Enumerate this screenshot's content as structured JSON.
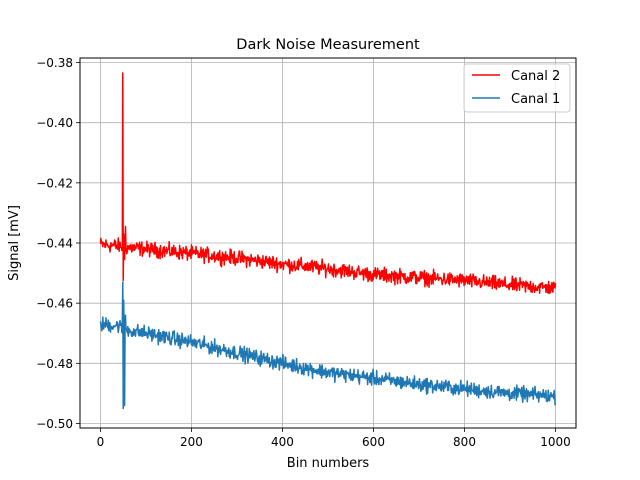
{
  "chart_data": {
    "type": "line",
    "title": "Dark Noise Measurement",
    "xlabel": "Bin numbers",
    "ylabel": "Signal [mV]",
    "xlim": [
      -45,
      1045
    ],
    "ylim": [
      -0.5015,
      -0.3785
    ],
    "x_ticks": [
      0,
      200,
      400,
      600,
      800,
      1000
    ],
    "y_ticks": [
      -0.5,
      -0.48,
      -0.46,
      -0.44,
      -0.42,
      -0.4,
      -0.38
    ],
    "x_tick_labels": [
      "0",
      "200",
      "400",
      "600",
      "800",
      "1000"
    ],
    "y_tick_labels": [
      "−0.50",
      "−0.48",
      "−0.46",
      "−0.44",
      "−0.42",
      "−0.40",
      "−0.38"
    ],
    "grid": true,
    "legend_position": "top-right",
    "x_range": [
      0,
      1000
    ],
    "series": [
      {
        "name": "Canal 2",
        "color": "#ff0000",
        "trend_x": [
          0,
          40,
          60,
          100,
          200,
          300,
          400,
          500,
          600,
          700,
          800,
          900,
          1000
        ],
        "trend_y": [
          -0.4405,
          -0.441,
          -0.4415,
          -0.442,
          -0.4435,
          -0.445,
          -0.447,
          -0.4485,
          -0.4505,
          -0.4515,
          -0.4525,
          -0.454,
          -0.455
        ],
        "noise_amplitude": 0.0012,
        "spikes": [
          {
            "x": 49,
            "y": -0.3835
          },
          {
            "x": 50,
            "y": -0.4525
          },
          {
            "x": 51,
            "y": -0.437
          },
          {
            "x": 53,
            "y": -0.4455
          },
          {
            "x": 55,
            "y": -0.4345
          }
        ]
      },
      {
        "name": "Canal 1",
        "color": "#1f77b4",
        "trend_x": [
          0,
          40,
          60,
          100,
          200,
          300,
          400,
          500,
          600,
          700,
          800,
          900,
          1000
        ],
        "trend_y": [
          -0.467,
          -0.4675,
          -0.469,
          -0.47,
          -0.473,
          -0.4765,
          -0.48,
          -0.483,
          -0.485,
          -0.487,
          -0.4885,
          -0.49,
          -0.491
        ],
        "noise_amplitude": 0.0012,
        "spikes": [
          {
            "x": 49,
            "y": -0.453
          },
          {
            "x": 50,
            "y": -0.495
          },
          {
            "x": 51,
            "y": -0.459
          },
          {
            "x": 53,
            "y": -0.494
          },
          {
            "x": 55,
            "y": -0.464
          }
        ]
      }
    ]
  }
}
